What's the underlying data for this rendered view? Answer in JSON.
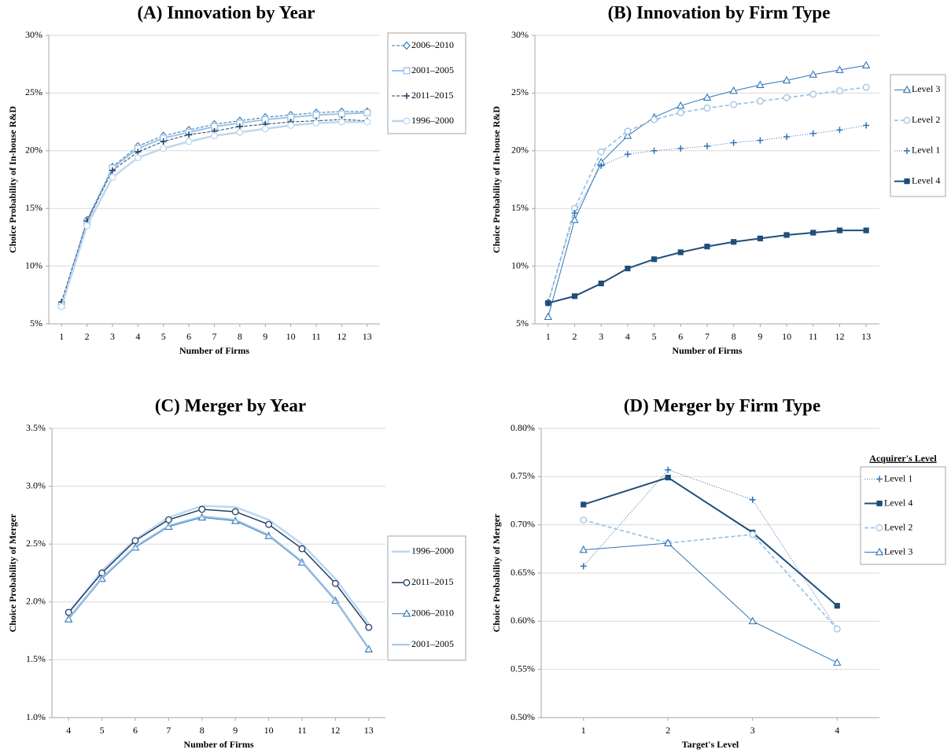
{
  "chart_data": [
    {
      "type": "line",
      "title": "(A)  Innovation by Year",
      "xlabel": "Number of Firms",
      "ylabel": "Choice Probability of In-house R&D",
      "x": [
        1,
        2,
        3,
        4,
        5,
        6,
        7,
        8,
        9,
        10,
        11,
        12,
        13
      ],
      "xlim": [
        0.5,
        13.5
      ],
      "xticks": [
        1,
        2,
        3,
        4,
        5,
        6,
        7,
        8,
        9,
        10,
        11,
        12,
        13
      ],
      "ylim": [
        5,
        30
      ],
      "yticks": [
        {
          "value": 5,
          "label": "5%"
        },
        {
          "value": 10,
          "label": "10%"
        },
        {
          "value": 15,
          "label": "15%"
        },
        {
          "value": 20,
          "label": "20%"
        },
        {
          "value": 25,
          "label": "25%"
        },
        {
          "value": 30,
          "label": "30%"
        }
      ],
      "grid": true,
      "legend": "right",
      "series": [
        {
          "name": "2006–2010",
          "color": "#2e75b6",
          "marker": "diamond-open",
          "dash": "4 2",
          "width": 1,
          "values": [
            6.7,
            14.0,
            18.6,
            20.4,
            21.3,
            21.8,
            22.3,
            22.6,
            22.9,
            23.1,
            23.3,
            23.4,
            23.4
          ]
        },
        {
          "name": "2001–2005",
          "color": "#9dc3e6",
          "marker": "square-open",
          "dash": "none",
          "width": 2,
          "values": [
            6.6,
            13.8,
            18.5,
            20.2,
            21.1,
            21.6,
            22.1,
            22.4,
            22.7,
            22.9,
            23.1,
            23.2,
            23.3
          ]
        },
        {
          "name": "2011–2015",
          "color": "#1f3f66",
          "marker": "plus",
          "dash": "4 2",
          "width": 1,
          "values": [
            6.9,
            13.9,
            18.3,
            19.9,
            20.8,
            21.4,
            21.7,
            22.1,
            22.3,
            22.5,
            22.6,
            22.7,
            22.6
          ]
        },
        {
          "name": "1996–2000",
          "color": "#bdd7ee",
          "marker": "circle-open",
          "dash": "none",
          "width": 2.5,
          "values": [
            6.5,
            13.5,
            17.7,
            19.4,
            20.2,
            20.8,
            21.3,
            21.6,
            21.9,
            22.2,
            22.4,
            22.5,
            22.5
          ]
        }
      ]
    },
    {
      "type": "line",
      "title": "(B)  Innovation by Firm Type",
      "xlabel": "Number of Firms",
      "ylabel": "Choice Probability of In-house R&D",
      "x": [
        1,
        2,
        3,
        4,
        5,
        6,
        7,
        8,
        9,
        10,
        11,
        12,
        13
      ],
      "xlim": [
        0.5,
        13.5
      ],
      "xticks": [
        1,
        2,
        3,
        4,
        5,
        6,
        7,
        8,
        9,
        10,
        11,
        12,
        13
      ],
      "ylim": [
        5,
        30
      ],
      "yticks": [
        {
          "value": 5,
          "label": "5%"
        },
        {
          "value": 10,
          "label": "10%"
        },
        {
          "value": 15,
          "label": "15%"
        },
        {
          "value": 20,
          "label": "20%"
        },
        {
          "value": 25,
          "label": "25%"
        },
        {
          "value": 30,
          "label": "30%"
        }
      ],
      "grid": true,
      "legend": "right",
      "series": [
        {
          "name": "Level 3",
          "color": "#2e75b6",
          "marker": "triangle-open",
          "dash": "none",
          "width": 1,
          "values": [
            5.6,
            14.0,
            19.0,
            21.3,
            22.9,
            23.9,
            24.6,
            25.2,
            25.7,
            26.1,
            26.6,
            27.0,
            27.4
          ]
        },
        {
          "name": "Level 2",
          "color": "#9dc3e6",
          "marker": "circle-open",
          "dash": "5 3",
          "width": 1.8,
          "values": [
            6.8,
            15.0,
            19.9,
            21.7,
            22.7,
            23.3,
            23.7,
            24.0,
            24.3,
            24.6,
            24.9,
            25.2,
            25.5
          ]
        },
        {
          "name": "Level 1",
          "color": "#2e75b6",
          "marker": "plus",
          "dash": "1 2",
          "width": 1,
          "values": [
            6.9,
            14.6,
            18.7,
            19.7,
            20.0,
            20.2,
            20.4,
            20.7,
            20.9,
            21.2,
            21.5,
            21.8,
            22.2
          ]
        },
        {
          "name": "Level 4",
          "color": "#1f4e79",
          "marker": "square",
          "dash": "none",
          "width": 2,
          "values": [
            6.8,
            7.4,
            8.5,
            9.8,
            10.6,
            11.2,
            11.7,
            12.1,
            12.4,
            12.7,
            12.9,
            13.1,
            13.1
          ]
        }
      ]
    },
    {
      "type": "line",
      "title": "(C)  Merger by Year",
      "xlabel": "Number of Firms",
      "ylabel": "Choice Probability of Merger",
      "x": [
        4,
        5,
        6,
        7,
        8,
        9,
        10,
        11,
        12,
        13
      ],
      "xlim": [
        3.5,
        13.5
      ],
      "xticks": [
        4,
        5,
        6,
        7,
        8,
        9,
        10,
        11,
        12,
        13
      ],
      "ylim": [
        1.0,
        3.5
      ],
      "yticks": [
        {
          "value": 1.0,
          "label": "1.0%"
        },
        {
          "value": 1.5,
          "label": "1.5%"
        },
        {
          "value": 2.0,
          "label": "2.0%"
        },
        {
          "value": 2.5,
          "label": "2.5%"
        },
        {
          "value": 3.0,
          "label": "3.0%"
        },
        {
          "value": 3.5,
          "label": "3.5%"
        }
      ],
      "grid": true,
      "legend": "right",
      "series": [
        {
          "name": "1996–2000",
          "color": "#bdd7ee",
          "marker": "none",
          "dash": "none",
          "width": 2.5,
          "values": [
            1.9,
            2.27,
            2.54,
            2.73,
            2.83,
            2.82,
            2.71,
            2.5,
            2.2,
            1.81
          ]
        },
        {
          "name": "2011–2015",
          "color": "#1f3f66",
          "marker": "circle-open",
          "dash": "none",
          "width": 1.5,
          "values": [
            1.91,
            2.25,
            2.53,
            2.71,
            2.8,
            2.78,
            2.67,
            2.46,
            2.16,
            1.78
          ]
        },
        {
          "name": "2006–2010",
          "color": "#2e75b6",
          "marker": "triangle-open",
          "dash": "none",
          "width": 1,
          "values": [
            1.85,
            2.2,
            2.47,
            2.65,
            2.73,
            2.7,
            2.57,
            2.34,
            2.01,
            1.59
          ]
        },
        {
          "name": "2001–2005",
          "color": "#9dc3e6",
          "marker": "none",
          "dash": "none",
          "width": 2,
          "values": [
            1.86,
            2.21,
            2.48,
            2.66,
            2.74,
            2.71,
            2.58,
            2.35,
            2.02,
            1.6
          ]
        }
      ]
    },
    {
      "type": "line",
      "title": "(D)  Merger by Firm Type",
      "xlabel": "Target's Level",
      "ylabel": "Choice Probability of Merger",
      "x": [
        1,
        2,
        3,
        4
      ],
      "xlim": [
        0.5,
        4.5
      ],
      "xticks": [
        1,
        2,
        3,
        4
      ],
      "ylim": [
        0.5,
        0.8
      ],
      "yticks": [
        {
          "value": 0.5,
          "label": "0.50%"
        },
        {
          "value": 0.55,
          "label": "0.55%"
        },
        {
          "value": 0.6,
          "label": "0.60%"
        },
        {
          "value": 0.65,
          "label": "0.65%"
        },
        {
          "value": 0.7,
          "label": "0.70%"
        },
        {
          "value": 0.75,
          "label": "0.75%"
        },
        {
          "value": 0.8,
          "label": "0.80%"
        }
      ],
      "grid": true,
      "legend": "right",
      "legend_title": "Acquirer's Level",
      "series": [
        {
          "name": "Level 1",
          "color": "#2e75b6",
          "marker": "plus",
          "dash": "1 2",
          "width": 1,
          "values": [
            0.657,
            0.757,
            0.726,
            0.592
          ]
        },
        {
          "name": "Level 4",
          "color": "#1f4e79",
          "marker": "square",
          "dash": "none",
          "width": 2,
          "values": [
            0.721,
            0.749,
            0.692,
            0.616
          ]
        },
        {
          "name": "Level 2",
          "color": "#9dc3e6",
          "marker": "circle-open",
          "dash": "5 3",
          "width": 1.8,
          "values": [
            0.705,
            0.681,
            0.69,
            0.592
          ]
        },
        {
          "name": "Level 3",
          "color": "#2e75b6",
          "marker": "triangle-open",
          "dash": "none",
          "width": 1,
          "values": [
            0.674,
            0.681,
            0.6,
            0.557
          ]
        }
      ]
    }
  ]
}
